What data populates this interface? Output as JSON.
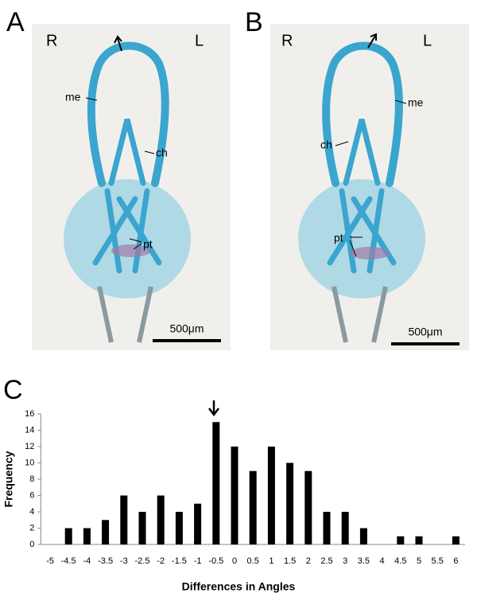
{
  "panels": [
    {
      "label": "A",
      "left": "R",
      "right": "L",
      "annotations": [
        "me",
        "ch",
        "pt"
      ],
      "scale_bar": "500μm"
    },
    {
      "label": "B",
      "left": "R",
      "right": "L",
      "annotations": [
        "me",
        "ch",
        "pt"
      ],
      "scale_bar": "500μm"
    }
  ],
  "chart_data": {
    "type": "bar",
    "panel_label": "C",
    "categories": [
      -5,
      -4.5,
      -4,
      -3.5,
      -3,
      -2.5,
      -2,
      -1.5,
      -1,
      -0.5,
      0,
      0.5,
      1,
      1.5,
      2,
      2.5,
      3,
      3.5,
      4,
      4.5,
      5,
      5.5,
      6
    ],
    "values": [
      0,
      2,
      2,
      3,
      6,
      4,
      6,
      4,
      5,
      15,
      12,
      9,
      12,
      10,
      9,
      4,
      4,
      2,
      0,
      1,
      1,
      0,
      1
    ],
    "color": "#000000",
    "ylim": [
      0,
      16
    ],
    "yticks": [
      0,
      2,
      4,
      6,
      8,
      10,
      12,
      14,
      16
    ],
    "xlabel": "Differences in Angles",
    "ylabel": "Frequency",
    "grid": false
  }
}
